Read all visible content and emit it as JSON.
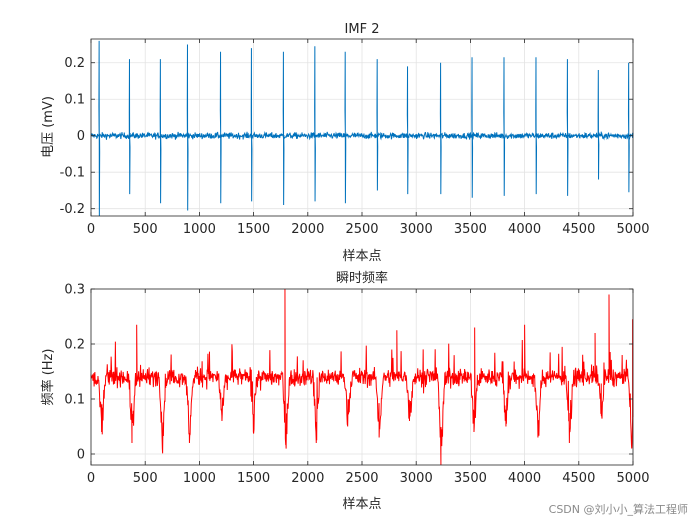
{
  "watermark": "CSDN @刘小小_算法工程师",
  "chart_data": [
    {
      "type": "line",
      "title": "IMF 2",
      "xlabel": "样本点",
      "ylabel": "电压 (mV)",
      "xlim": [
        0,
        5000
      ],
      "ylim": [
        -0.22,
        0.265
      ],
      "xticks": [
        0,
        500,
        1000,
        1500,
        2000,
        2500,
        3000,
        3500,
        4000,
        4500,
        5000
      ],
      "yticks": [
        -0.2,
        -0.1,
        0,
        0.1,
        0.2
      ],
      "ytick_labels": [
        "-0.2",
        "-0.1",
        "0",
        "0.1",
        "0.2"
      ],
      "grid": true,
      "color": "#0072BD",
      "baseline_noise": 0.008,
      "spikes": [
        {
          "x": 75,
          "pos": 0.26,
          "neg": -0.22
        },
        {
          "x": 355,
          "pos": 0.21,
          "neg": -0.16
        },
        {
          "x": 640,
          "pos": 0.21,
          "neg": -0.185
        },
        {
          "x": 890,
          "pos": 0.25,
          "neg": -0.205
        },
        {
          "x": 1195,
          "pos": 0.23,
          "neg": -0.185
        },
        {
          "x": 1480,
          "pos": 0.24,
          "neg": -0.18
        },
        {
          "x": 1775,
          "pos": 0.23,
          "neg": -0.19
        },
        {
          "x": 2065,
          "pos": 0.245,
          "neg": -0.18
        },
        {
          "x": 2345,
          "pos": 0.23,
          "neg": -0.185
        },
        {
          "x": 2640,
          "pos": 0.21,
          "neg": -0.15
        },
        {
          "x": 2920,
          "pos": 0.19,
          "neg": -0.16
        },
        {
          "x": 3225,
          "pos": 0.2,
          "neg": -0.16
        },
        {
          "x": 3515,
          "pos": 0.215,
          "neg": -0.17
        },
        {
          "x": 3810,
          "pos": 0.215,
          "neg": -0.165
        },
        {
          "x": 4105,
          "pos": 0.215,
          "neg": -0.16
        },
        {
          "x": 4395,
          "pos": 0.21,
          "neg": -0.165
        },
        {
          "x": 4680,
          "pos": 0.18,
          "neg": -0.12
        },
        {
          "x": 4960,
          "pos": 0.2,
          "neg": -0.155
        }
      ]
    },
    {
      "type": "line",
      "title": "瞬时频率",
      "xlabel": "样本点",
      "ylabel": "频率 (Hz)",
      "xlim": [
        0,
        5000
      ],
      "ylim": [
        -0.02,
        0.3
      ],
      "xticks": [
        0,
        500,
        1000,
        1500,
        2000,
        2500,
        3000,
        3500,
        4000,
        4500,
        5000
      ],
      "yticks": [
        0,
        0.1,
        0.2,
        0.3
      ],
      "ytick_labels": [
        "0",
        "0.1",
        "0.2",
        "0.3"
      ],
      "grid": true,
      "color": "#FF0000",
      "baseline": 0.14,
      "baseline_noise": 0.015,
      "dips": [
        {
          "x": 80,
          "min": 0.04
        },
        {
          "x": 360,
          "min": 0.02
        },
        {
          "x": 640,
          "min": 0.01
        },
        {
          "x": 890,
          "min": 0.02
        },
        {
          "x": 1190,
          "min": 0.06
        },
        {
          "x": 1480,
          "min": 0.04
        },
        {
          "x": 1780,
          "min": 0.02
        },
        {
          "x": 2060,
          "min": 0.02
        },
        {
          "x": 2350,
          "min": 0.05
        },
        {
          "x": 2640,
          "min": 0.03
        },
        {
          "x": 2920,
          "min": 0.06
        },
        {
          "x": 3210,
          "min": -0.02
        },
        {
          "x": 3515,
          "min": 0.04
        },
        {
          "x": 3810,
          "min": 0.05
        },
        {
          "x": 4105,
          "min": 0.03
        },
        {
          "x": 4395,
          "min": 0.02
        },
        {
          "x": 4690,
          "min": 0.07
        },
        {
          "x": 4970,
          "min": 0.01
        }
      ],
      "peaks": [
        {
          "x": 420,
          "max": 0.235
        },
        {
          "x": 1790,
          "max": 0.3
        },
        {
          "x": 2820,
          "max": 0.225
        },
        {
          "x": 3540,
          "max": 0.23
        },
        {
          "x": 4000,
          "max": 0.235
        },
        {
          "x": 4650,
          "max": 0.22
        },
        {
          "x": 4780,
          "max": 0.29
        },
        {
          "x": 4995,
          "max": 0.245
        }
      ]
    }
  ]
}
